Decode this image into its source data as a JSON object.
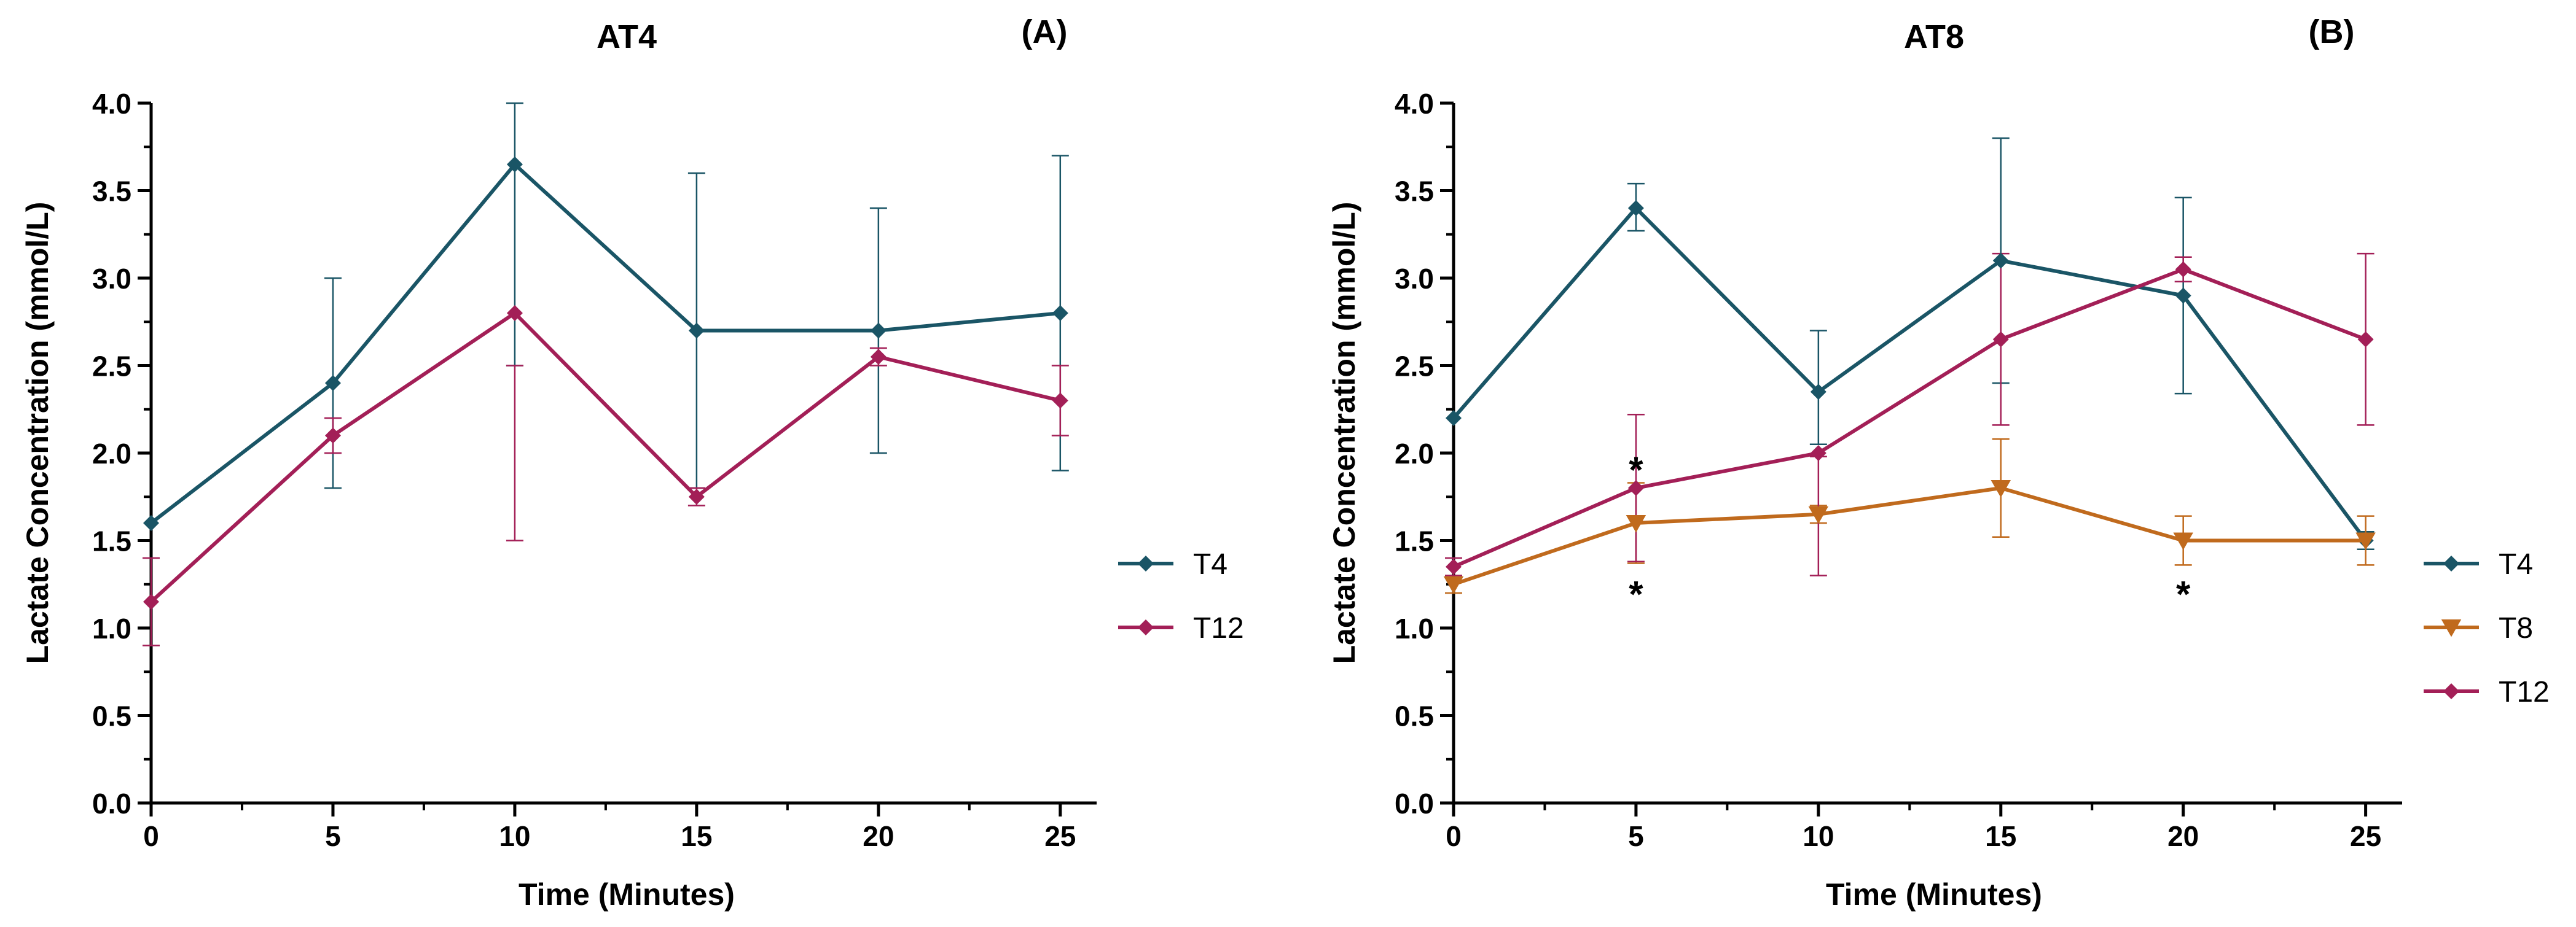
{
  "chart_data": [
    {
      "type": "line",
      "title": "AT4",
      "panel_label": "(A)",
      "xlabel": "Time (Minutes)",
      "ylabel": "Lactate Concentration (mmol/L)",
      "x": [
        0,
        5,
        10,
        15,
        20,
        25
      ],
      "x_ticks": [
        "0",
        "5",
        "10",
        "15",
        "20",
        "25"
      ],
      "y_ticks": [
        "0.0",
        "0.5",
        "1.0",
        "1.5",
        "2.0",
        "2.5",
        "3.0",
        "3.5",
        "4.0"
      ],
      "xlim": [
        0,
        26
      ],
      "ylim": [
        0,
        4
      ],
      "legend_position": "right",
      "series": [
        {
          "name": "T4",
          "color": "#1a5566",
          "marker": "diamond",
          "values": [
            1.6,
            2.4,
            3.65,
            2.7,
            2.7,
            2.8
          ],
          "err_low": [
            null,
            1.8,
            2.5,
            1.8,
            2.0,
            1.9
          ],
          "err_high": [
            null,
            3.0,
            4.0,
            3.6,
            3.4,
            3.7
          ]
        },
        {
          "name": "T12",
          "color": "#a31f57",
          "marker": "diamond",
          "values": [
            1.15,
            2.1,
            2.8,
            1.75,
            2.55,
            2.3
          ],
          "err_low": [
            0.9,
            2.0,
            1.5,
            1.7,
            2.5,
            2.1
          ],
          "err_high": [
            1.4,
            2.2,
            2.5,
            1.8,
            2.6,
            2.5
          ]
        }
      ],
      "annotations": []
    },
    {
      "type": "line",
      "title": "AT8",
      "panel_label": "(B)",
      "xlabel": "Time (Minutes)",
      "ylabel": "Lactate Concentration (mmol/L)",
      "x": [
        0,
        5,
        10,
        15,
        20,
        25
      ],
      "x_ticks": [
        "0",
        "5",
        "10",
        "15",
        "20",
        "25"
      ],
      "y_ticks": [
        "0.0",
        "0.5",
        "1.0",
        "1.5",
        "2.0",
        "2.5",
        "3.0",
        "3.5",
        "4.0"
      ],
      "xlim": [
        0,
        26
      ],
      "ylim": [
        0,
        4
      ],
      "legend_position": "right",
      "series": [
        {
          "name": "T4",
          "color": "#1a5566",
          "marker": "diamond",
          "values": [
            2.2,
            3.4,
            2.35,
            3.1,
            2.9,
            1.5
          ],
          "err_low": [
            null,
            3.27,
            2.05,
            2.4,
            2.34,
            1.45
          ],
          "err_high": [
            null,
            3.54,
            2.7,
            3.8,
            3.46,
            1.55
          ]
        },
        {
          "name": "T8",
          "color": "#c06a1d",
          "marker": "triangle-down",
          "values": [
            1.25,
            1.6,
            1.65,
            1.8,
            1.5,
            1.5
          ],
          "err_low": [
            1.2,
            1.37,
            1.6,
            1.52,
            1.36,
            1.36
          ],
          "err_high": [
            1.3,
            1.83,
            1.7,
            2.08,
            1.64,
            1.64
          ]
        },
        {
          "name": "T12",
          "color": "#a31f57",
          "marker": "diamond",
          "values": [
            1.35,
            1.8,
            2.0,
            2.65,
            3.05,
            2.65
          ],
          "err_low": [
            1.3,
            1.38,
            1.3,
            2.16,
            2.98,
            2.16
          ],
          "err_high": [
            1.4,
            2.22,
            1.98,
            3.14,
            3.12,
            3.14
          ]
        }
      ],
      "annotations": [
        {
          "x": 5,
          "y": 1.93,
          "text": "*"
        },
        {
          "x": 5,
          "y": 1.22,
          "text": "*"
        },
        {
          "x": 20,
          "y": 1.22,
          "text": "*"
        }
      ]
    }
  ]
}
